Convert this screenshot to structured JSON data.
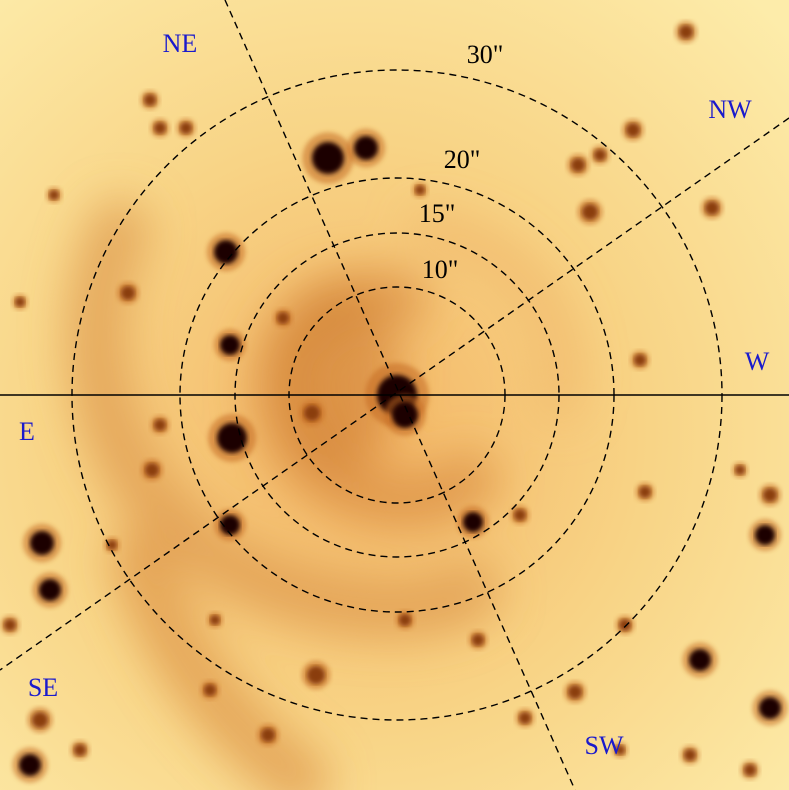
{
  "directions": [
    "NE",
    "NW",
    "W",
    "E",
    "SE",
    "SW"
  ],
  "rings": [
    "30\"",
    "20\"",
    "15\"",
    "10\""
  ]
}
